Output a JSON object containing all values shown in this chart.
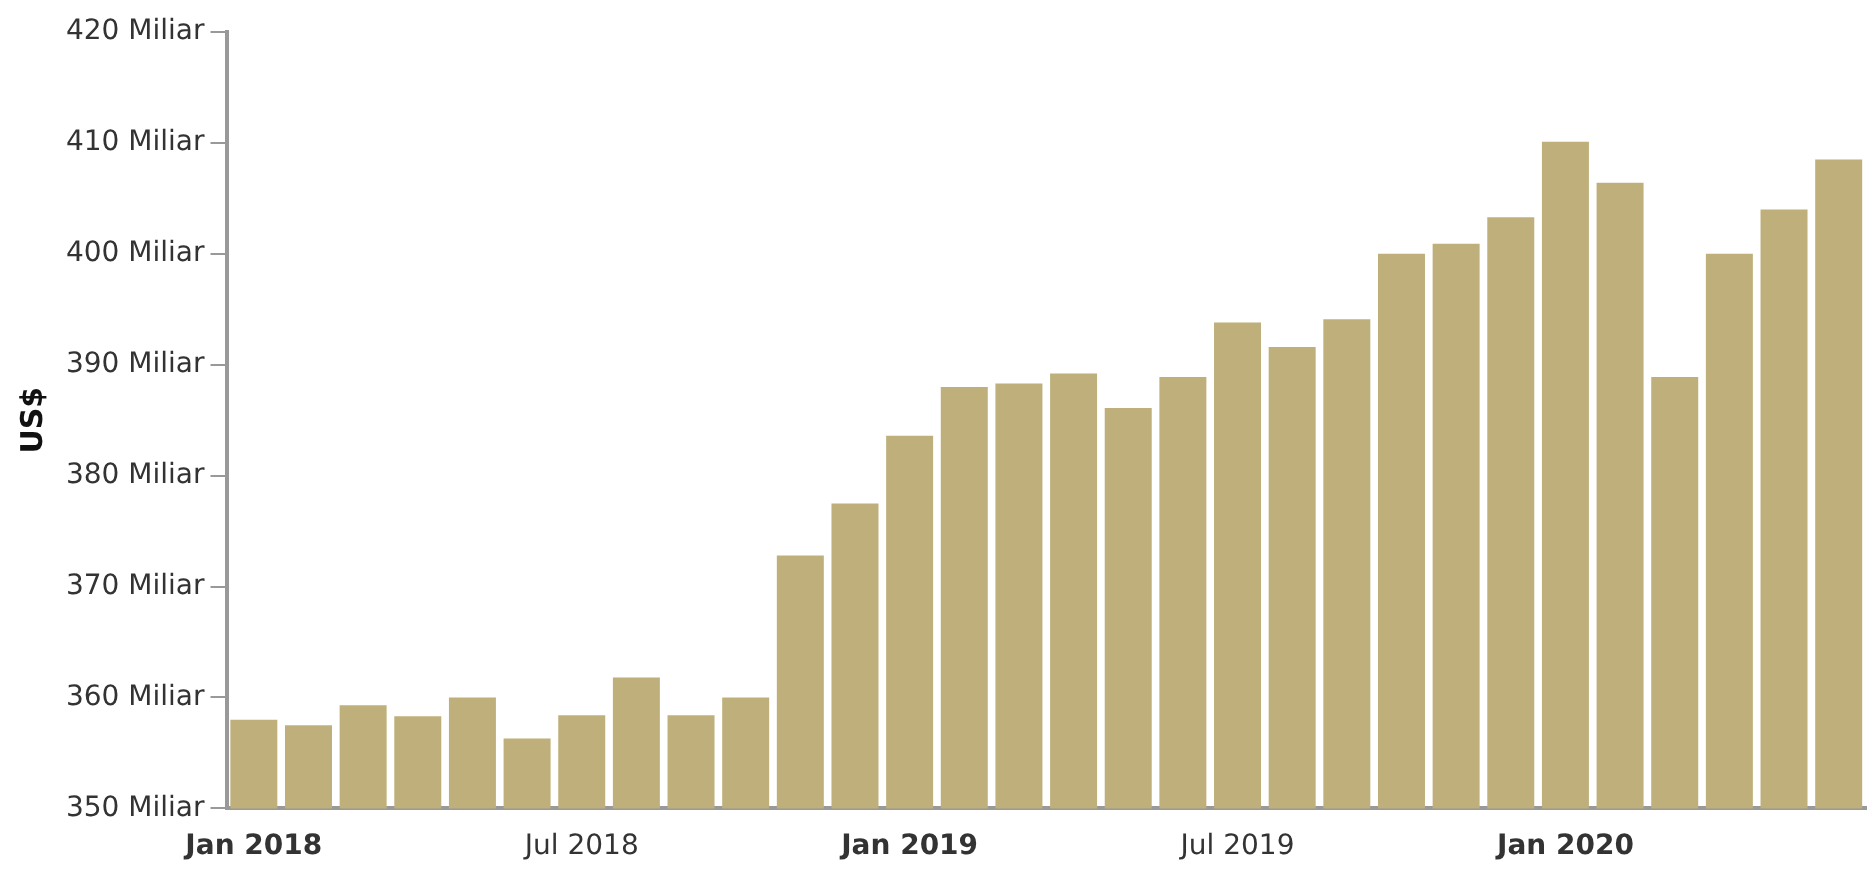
{
  "chart_data": {
    "type": "bar",
    "ylabel": "US$",
    "categories": [
      "Jan 2018",
      null,
      null,
      null,
      null,
      null,
      "Jul 2018",
      null,
      null,
      null,
      null,
      null,
      "Jan 2019",
      null,
      null,
      null,
      null,
      null,
      "Jul 2019",
      null,
      null,
      null,
      null,
      null,
      "Jan 2020",
      null,
      null,
      null,
      null,
      null
    ],
    "values": [
      358,
      357.5,
      359.3,
      358.3,
      360,
      356.3,
      358.4,
      361.8,
      358.4,
      360,
      372.8,
      377.5,
      383.6,
      388,
      388.3,
      389.2,
      386.1,
      388.9,
      393.8,
      391.6,
      394.1,
      400,
      400.9,
      403.3,
      410.1,
      406.4,
      388.9,
      400,
      404,
      408.5
    ],
    "color": "#bfb07b",
    "ylim": [
      350,
      420
    ],
    "yticks": [
      {
        "value": 350,
        "label": "350 Miliar"
      },
      {
        "value": 360,
        "label": "360 Miliar"
      },
      {
        "value": 370,
        "label": "370 Miliar"
      },
      {
        "value": 380,
        "label": "380 Miliar"
      },
      {
        "value": 390,
        "label": "390 Miliar"
      },
      {
        "value": 400,
        "label": "400 Miliar"
      },
      {
        "value": 410,
        "label": "410 Miliar"
      },
      {
        "value": 420,
        "label": "420 Miliar"
      }
    ],
    "grid": false,
    "legend": false
  }
}
